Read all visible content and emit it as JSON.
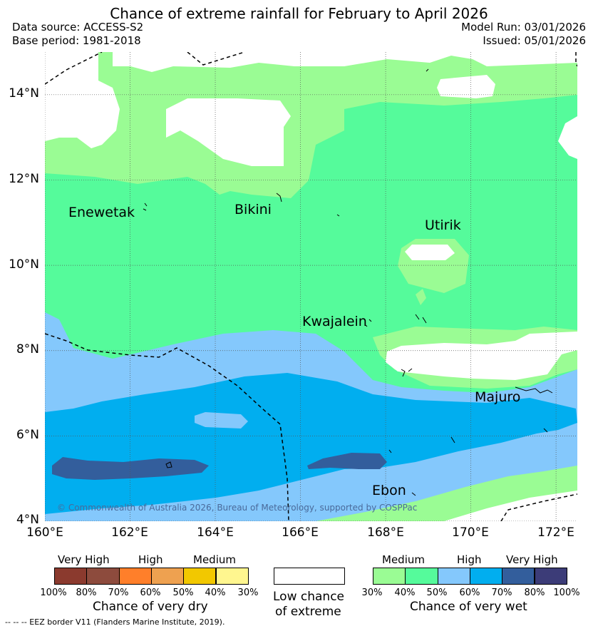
{
  "header": {
    "title": "Chance of extreme rainfall for February to April 2026",
    "data_source": "Data source: ACCESS-S2",
    "base_period": "Base period: 1981-2018",
    "model_run": "Model Run: 03/01/2026",
    "issued": "Issued: 05/01/2026"
  },
  "map": {
    "lon_range": [
      160,
      172.5
    ],
    "lat_range": [
      4,
      15
    ],
    "lat_ticks": [
      "14°N",
      "12°N",
      "10°N",
      "8°N",
      "6°N",
      "4°N"
    ],
    "lon_ticks": [
      "160°E",
      "162°E",
      "164°E",
      "166°E",
      "168°E",
      "170°E",
      "172°E"
    ],
    "places": [
      {
        "name": "Enewetak"
      },
      {
        "name": "Bikini"
      },
      {
        "name": "Utirik"
      },
      {
        "name": "Kwajalein"
      },
      {
        "name": "Majuro"
      },
      {
        "name": "Ebon"
      }
    ],
    "copyright": "© Commonwealth of Australia 2026, Bureau of Meteorology, supported by COSPPac",
    "colors": {
      "wet_medium_30": "#9afc94",
      "wet_medium_40": "#55fb9b",
      "wet_high_50": "#84c8fc",
      "wet_high_60": "#01aeef",
      "wet_very_high_70": "#335e9c",
      "wet_very_high_80": "#3c3c78",
      "low_chance": "#ffffff"
    }
  },
  "legend": {
    "dry": {
      "groups": [
        "Very High",
        "High",
        "Medium"
      ],
      "colors": [
        "#8b3a2e",
        "#8d4b3d",
        "#ff7f2a",
        "#eea150",
        "#f2c800",
        "#fff68f"
      ],
      "ticks": [
        "100%",
        "80%",
        "70%",
        "60%",
        "50%",
        "40%",
        "30%"
      ],
      "title": "Chance of very dry"
    },
    "low": {
      "title_line1": "Low chance",
      "title_line2": "of extreme"
    },
    "wet": {
      "groups": [
        "Medium",
        "High",
        "Very High"
      ],
      "colors": [
        "#9afc94",
        "#55fb9b",
        "#84c8fc",
        "#01aeef",
        "#335e9c",
        "#3c3c78"
      ],
      "ticks": [
        "30%",
        "40%",
        "50%",
        "60%",
        "70%",
        "80%",
        "100%"
      ],
      "title": "Chance of very wet"
    }
  },
  "footer": {
    "eez_note": "--  --  -- EEZ border V11 (Flanders Marine Institute, 2019)."
  }
}
